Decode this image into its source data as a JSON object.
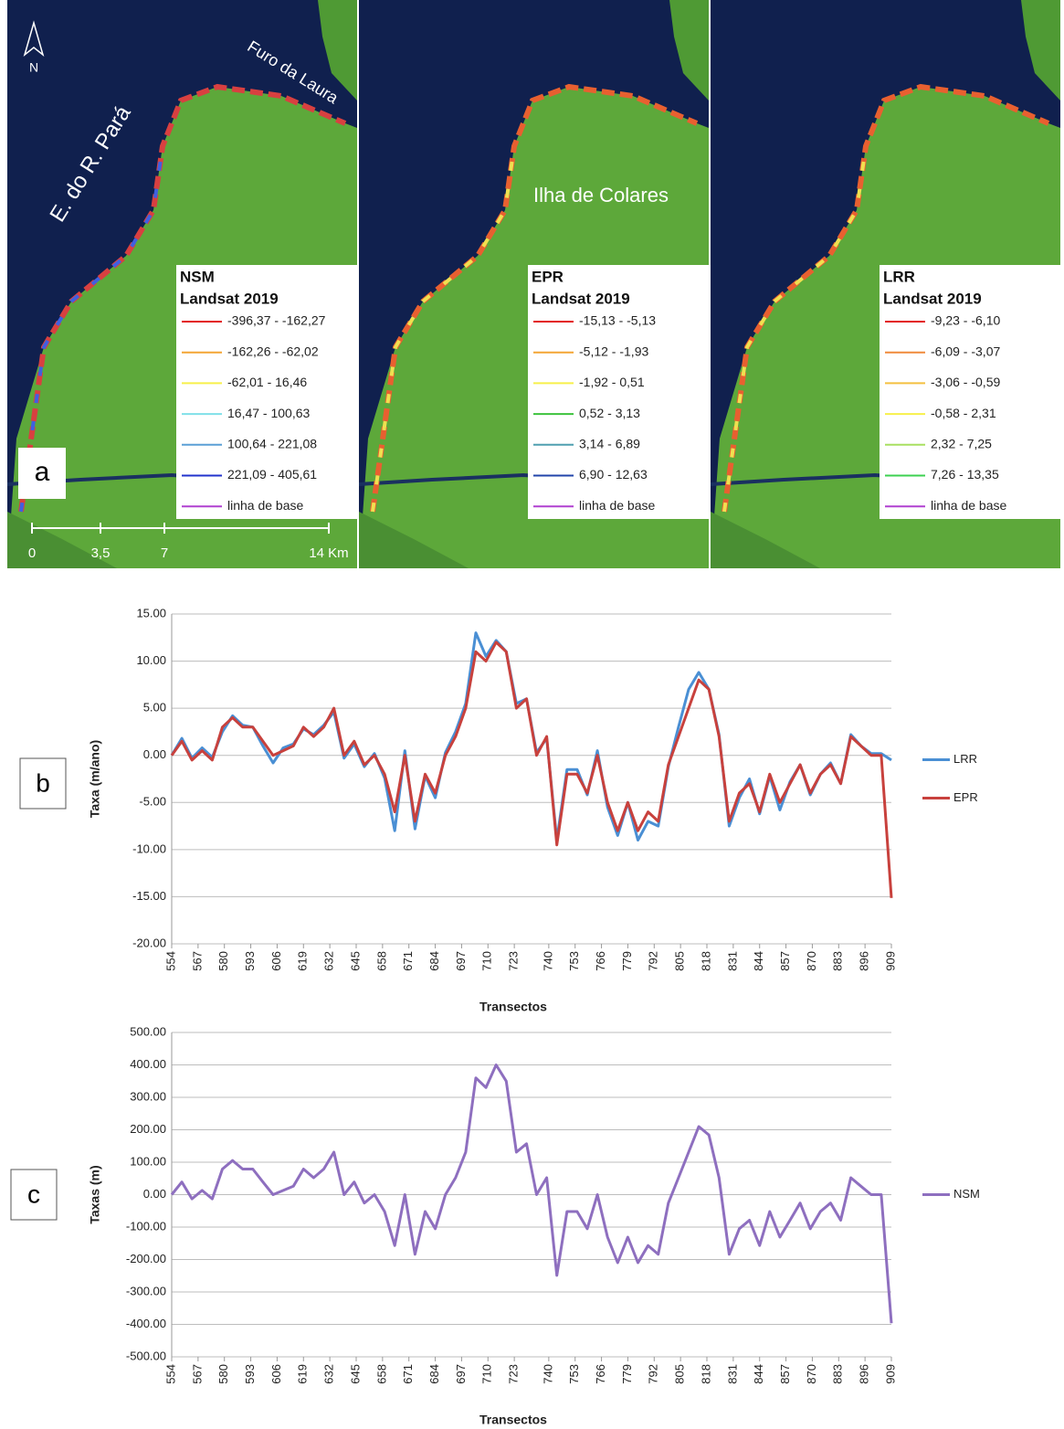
{
  "map_labels": {
    "north": "N",
    "estuary": "E. do R. Pará",
    "channel": "Furo da Laura",
    "island": "Ilha de Colares",
    "scale": [
      "0",
      "3,5",
      "7",
      "14 Km"
    ]
  },
  "panel_labels": [
    "a",
    "b",
    "c"
  ],
  "maps": [
    {
      "title": "NSM",
      "subtitle": "Landsat 2019",
      "classes": [
        {
          "label": "-396,37 - -162,27",
          "color": "#e31a1c"
        },
        {
          "label": "-162,26 - -62,02",
          "color": "#f4a534"
        },
        {
          "label": "-62,01 - 16,46",
          "color": "#f7f04a"
        },
        {
          "label": "16,47 - 100,63",
          "color": "#7fe0e8"
        },
        {
          "label": "100,64 - 221,08",
          "color": "#5a9fd6"
        },
        {
          "label": "221,09 - 405,61",
          "color": "#2233cc"
        },
        {
          "label": "linha de base",
          "color": "#b040d0"
        }
      ]
    },
    {
      "title": "EPR",
      "subtitle": "Landsat 2019",
      "classes": [
        {
          "label": "-15,13 - -5,13",
          "color": "#e31a1c"
        },
        {
          "label": "-5,12 - -1,93",
          "color": "#f4a534"
        },
        {
          "label": "-1,92 - 0,51",
          "color": "#f7f04a"
        },
        {
          "label": "0,52 - 3,13",
          "color": "#3cc23c"
        },
        {
          "label": "3,14 - 6,89",
          "color": "#4f9fb0"
        },
        {
          "label": "6,90 - 12,63",
          "color": "#2244aa"
        },
        {
          "label": "linha de base",
          "color": "#b040d0"
        }
      ]
    },
    {
      "title": "LRR",
      "subtitle": "Landsat 2019",
      "classes": [
        {
          "label": "-9,23 - -6,10",
          "color": "#e31a1c"
        },
        {
          "label": "-6,09 - -3,07",
          "color": "#f08a3a"
        },
        {
          "label": "-3,06 - -0,59",
          "color": "#f4c040"
        },
        {
          "label": "-0,58 - 2,31",
          "color": "#f7f04a"
        },
        {
          "label": "2,32 - 7,25",
          "color": "#a8e060"
        },
        {
          "label": "7,26 - 13,35",
          "color": "#3cd050"
        },
        {
          "label": "linha de base",
          "color": "#b040d0"
        }
      ]
    }
  ],
  "chart_data": [
    {
      "type": "line",
      "y_label": "Taxa (m/ano)",
      "x_label": "Transectos",
      "grid": true,
      "legend": "right",
      "x": [
        554,
        559,
        564,
        569,
        574,
        579,
        584,
        589,
        594,
        599,
        604,
        609,
        614,
        619,
        624,
        629,
        634,
        639,
        644,
        649,
        654,
        659,
        664,
        669,
        674,
        679,
        684,
        689,
        694,
        699,
        704,
        709,
        714,
        719,
        724,
        729,
        734,
        739,
        744,
        749,
        754,
        759,
        764,
        769,
        774,
        779,
        784,
        789,
        794,
        799,
        804,
        809,
        814,
        819,
        824,
        829,
        834,
        839,
        844,
        849,
        854,
        859,
        864,
        869,
        874,
        879,
        884,
        889,
        894,
        899,
        904,
        909
      ],
      "xlim": [
        554,
        909
      ],
      "xticks": [
        554,
        567,
        580,
        593,
        606,
        619,
        632,
        645,
        658,
        671,
        684,
        697,
        710,
        723,
        740,
        753,
        766,
        779,
        792,
        805,
        818,
        831,
        844,
        857,
        870,
        883,
        896,
        909
      ],
      "ylim": [
        -20,
        15
      ],
      "yticks": [
        {
          "value": -20,
          "label": "-20.00"
        },
        {
          "value": -15,
          "label": "-15.00"
        },
        {
          "value": -10,
          "label": "-10.00"
        },
        {
          "value": -5,
          "label": "-5.00"
        },
        {
          "value": 0,
          "label": "0.00"
        },
        {
          "value": 5,
          "label": "5.00"
        },
        {
          "value": 10,
          "label": "10.00"
        },
        {
          "value": 15,
          "label": "15.00"
        }
      ],
      "series": [
        {
          "name": "LRR",
          "color": "#4a8fd4",
          "values": [
            0,
            1.8,
            -0.3,
            0.8,
            -0.2,
            2.5,
            4.2,
            3.2,
            3,
            1,
            -0.8,
            0.8,
            1.2,
            2.8,
            2.2,
            3.2,
            4.6,
            -0.3,
            1.2,
            -1.2,
            0.2,
            -2.4,
            -8,
            0.5,
            -7.8,
            -2.2,
            -4.5,
            0.3,
            2.5,
            5.5,
            13,
            10.5,
            12.2,
            11,
            5.5,
            6,
            0.3,
            1.8,
            -9,
            -1.5,
            -1.5,
            -4.2,
            0.5,
            -5.5,
            -8.5,
            -5,
            -9,
            -7,
            -7.5,
            -1.2,
            3,
            7,
            8.8,
            7,
            2.2,
            -7.5,
            -4.5,
            -2.5,
            -6.2,
            -2.2,
            -5.8,
            -2.8,
            -1,
            -4.2,
            -2,
            -0.8,
            -3,
            2.2,
            1,
            0.2,
            0.2,
            -0.5
          ]
        },
        {
          "name": "EPR",
          "color": "#c8413d",
          "values": [
            0,
            1.5,
            -0.5,
            0.5,
            -0.5,
            3,
            4,
            3,
            3,
            1.5,
            0,
            0.5,
            1,
            3,
            2,
            3,
            5,
            0,
            1.5,
            -1,
            0,
            -2,
            -6,
            0,
            -7,
            -2,
            -4,
            0,
            2,
            5,
            11,
            10,
            12,
            11,
            5,
            6,
            0,
            2,
            -9.5,
            -2,
            -2,
            -4,
            0,
            -5,
            -8,
            -5,
            -8,
            -6,
            -7,
            -1,
            2,
            5,
            8,
            7,
            2,
            -7,
            -4,
            -3,
            -6,
            -2,
            -5,
            -3,
            -1,
            -4,
            -2,
            -1,
            -3,
            2,
            1,
            0,
            0,
            -15.13
          ]
        }
      ]
    },
    {
      "type": "line",
      "y_label": "Taxas (m)",
      "x_label": "Transectos",
      "grid": true,
      "legend": "right",
      "x": [
        554,
        559,
        564,
        569,
        574,
        579,
        584,
        589,
        594,
        599,
        604,
        609,
        614,
        619,
        624,
        629,
        634,
        639,
        644,
        649,
        654,
        659,
        664,
        669,
        674,
        679,
        684,
        689,
        694,
        699,
        704,
        709,
        714,
        719,
        724,
        729,
        734,
        739,
        744,
        749,
        754,
        759,
        764,
        769,
        774,
        779,
        784,
        789,
        794,
        799,
        804,
        809,
        814,
        819,
        824,
        829,
        834,
        839,
        844,
        849,
        854,
        859,
        864,
        869,
        874,
        879,
        884,
        889,
        894,
        899,
        904,
        909
      ],
      "xlim": [
        554,
        909
      ],
      "xticks": [
        554,
        567,
        580,
        593,
        606,
        619,
        632,
        645,
        658,
        671,
        684,
        697,
        710,
        723,
        740,
        753,
        766,
        779,
        792,
        805,
        818,
        831,
        844,
        857,
        870,
        883,
        896,
        909
      ],
      "ylim": [
        -500,
        500
      ],
      "yticks": [
        {
          "value": -500,
          "label": "-500.00"
        },
        {
          "value": -400,
          "label": "-400.00"
        },
        {
          "value": -300,
          "label": "-300.00"
        },
        {
          "value": -200,
          "label": "-200.00"
        },
        {
          "value": -100,
          "label": "-100.00"
        },
        {
          "value": 0,
          "label": "0.00"
        },
        {
          "value": 100,
          "label": "100.00"
        },
        {
          "value": 200,
          "label": "200.00"
        },
        {
          "value": 300,
          "label": "300.00"
        },
        {
          "value": 400,
          "label": "400.00"
        },
        {
          "value": 500,
          "label": "500.00"
        }
      ],
      "series": [
        {
          "name": "NSM",
          "color": "#8e6fbf",
          "values": [
            0,
            39,
            -13,
            13,
            -13,
            79,
            105,
            79,
            79,
            39,
            0,
            13,
            26,
            79,
            52,
            79,
            131,
            0,
            39,
            -26,
            0,
            -52,
            -157,
            0,
            -184,
            -52,
            -105,
            0,
            52,
            131,
            360,
            330,
            400,
            350,
            131,
            157,
            0,
            52,
            -249,
            -52,
            -52,
            -105,
            0,
            -131,
            -210,
            -131,
            -210,
            -157,
            -184,
            -26,
            52,
            131,
            210,
            184,
            52,
            -184,
            -105,
            -79,
            -157,
            -52,
            -131,
            -79,
            -26,
            -105,
            -52,
            -26,
            -79,
            52,
            26,
            0,
            0,
            -396.37
          ]
        }
      ]
    }
  ]
}
